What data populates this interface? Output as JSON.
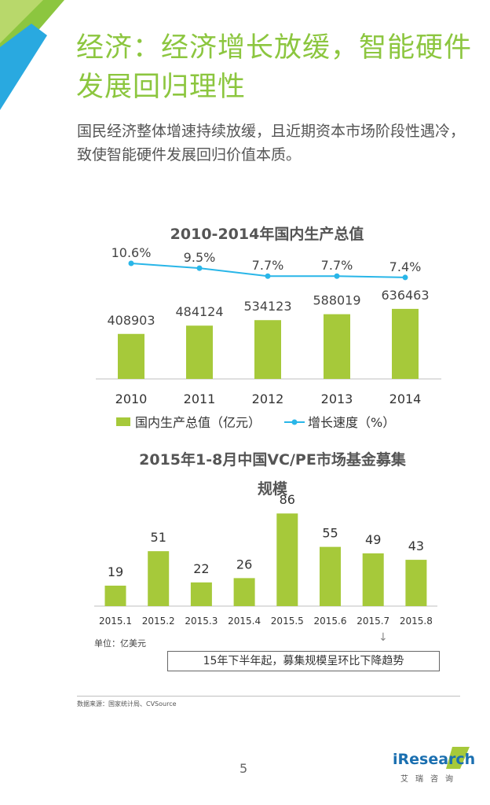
{
  "header": {
    "title": "经济：经济增长放缓，智能硬件发展回归理性",
    "subtitle": "国民经济整体增速持续放缓，且近期资本市场阶段性遇冷，致使智能硬件发展回归价值本质。"
  },
  "colors": {
    "accent": "#8cc63f",
    "bar": "#a6c93a",
    "line": "#29b6e8",
    "logo_blue": "#1a6fb0"
  },
  "chart_data": [
    {
      "type": "bar",
      "title": "2010-2014年国内生产总值",
      "categories": [
        "2010",
        "2011",
        "2012",
        "2013",
        "2014"
      ],
      "series": [
        {
          "name": "国内生产总值（亿元）",
          "values": [
            408903,
            484124,
            534123,
            588019,
            636463
          ]
        },
        {
          "name": "增长速度（%）",
          "type": "line",
          "values": [
            10.6,
            9.5,
            7.7,
            7.7,
            7.4
          ],
          "labels": [
            "10.6%",
            "9.5%",
            "7.7%",
            "7.7%",
            "7.4%"
          ]
        }
      ],
      "legend": "bottom"
    },
    {
      "type": "bar",
      "title": "2015年1-8月中国VC/PE市场基金募集规模",
      "categories": [
        "2015.1",
        "2015.2",
        "2015.3",
        "2015.4",
        "2015.5",
        "2015.6",
        "2015.7",
        "2015.8"
      ],
      "values": [
        19,
        51,
        22,
        26,
        86,
        55,
        49,
        43
      ],
      "unit_label": "单位：亿美元",
      "annotation": "15年下半年起，募集规模呈环比下降趋势"
    }
  ],
  "footer": {
    "source": "数据来源：国家统计局、CVSource",
    "page_number": "5",
    "logo_text": "iResearch",
    "logo_sub": "艾瑞咨询"
  }
}
